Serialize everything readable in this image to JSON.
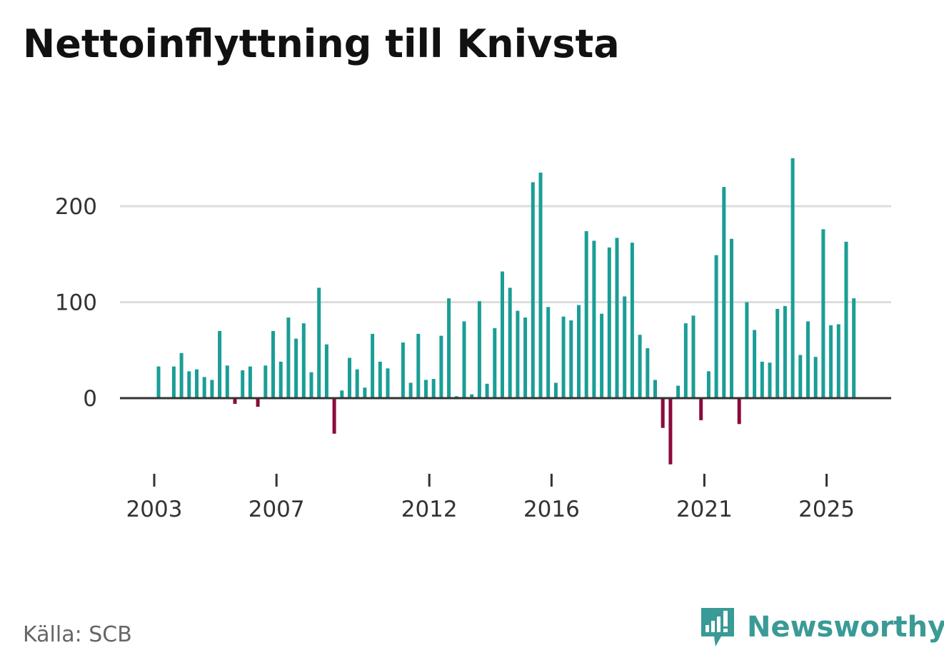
{
  "title": "Nettoinflyttning till Knivsta",
  "source": "Källa: SCB",
  "brand": "Newsworthy",
  "colors": {
    "positive": "#1a9e96",
    "negative": "#8c0a3c",
    "grid": "#dddddd",
    "axis": "#333333"
  },
  "chart_data": {
    "type": "bar",
    "title": "Nettoinflyttning till Knivsta",
    "xlabel": "",
    "ylabel": "",
    "ylim": [
      -70,
      250
    ],
    "yticks": [
      0,
      100,
      200
    ],
    "xticks": [
      "2003",
      "2007",
      "2012",
      "2016",
      "2021",
      "2025"
    ],
    "grid": true,
    "categories": [
      "2003-Q1",
      "2003-Q2",
      "2003-Q3",
      "2003-Q4",
      "2004-Q1",
      "2004-Q2",
      "2004-Q3",
      "2004-Q4",
      "2005-Q1",
      "2005-Q2",
      "2005-Q3",
      "2005-Q4",
      "2006-Q1",
      "2006-Q2",
      "2006-Q3",
      "2006-Q4",
      "2007-Q1",
      "2007-Q2",
      "2007-Q3",
      "2007-Q4",
      "2008-Q1",
      "2008-Q2",
      "2008-Q3",
      "2008-Q4",
      "2009-Q1",
      "2009-Q2",
      "2009-Q3",
      "2009-Q4",
      "2010-Q1",
      "2010-Q2",
      "2010-Q3",
      "2010-Q4",
      "2011-Q1",
      "2011-Q2",
      "2011-Q3",
      "2011-Q4",
      "2012-Q1",
      "2012-Q2",
      "2012-Q3",
      "2012-Q4",
      "2013-Q1",
      "2013-Q2",
      "2013-Q3",
      "2013-Q4",
      "2014-Q1",
      "2014-Q2",
      "2014-Q3",
      "2014-Q4",
      "2015-Q1",
      "2015-Q2",
      "2015-Q3",
      "2015-Q4",
      "2016-Q1",
      "2016-Q2",
      "2016-Q3",
      "2016-Q4",
      "2017-Q1",
      "2017-Q2",
      "2017-Q3",
      "2017-Q4",
      "2018-Q1",
      "2018-Q2",
      "2018-Q3",
      "2018-Q4",
      "2019-Q1",
      "2019-Q2",
      "2019-Q3",
      "2019-Q4",
      "2020-Q1",
      "2020-Q2",
      "2020-Q3",
      "2020-Q4",
      "2021-Q1",
      "2021-Q2",
      "2021-Q3",
      "2021-Q4",
      "2022-Q1",
      "2022-Q2",
      "2022-Q3",
      "2022-Q4",
      "2023-Q1",
      "2023-Q2",
      "2023-Q3",
      "2023-Q4",
      "2024-Q1",
      "2024-Q2",
      "2024-Q3",
      "2024-Q4",
      "2025-Q1",
      "2025-Q2",
      "2025-Q3",
      "2025-Q4"
    ],
    "series": [
      {
        "name": "Nettoinflyttning",
        "values": [
          33,
          0,
          33,
          47,
          28,
          30,
          22,
          19,
          70,
          34,
          -6,
          29,
          33,
          -9,
          34,
          70,
          38,
          84,
          62,
          78,
          27,
          115,
          56,
          -37,
          8,
          42,
          30,
          11,
          67,
          38,
          31,
          0,
          58,
          16,
          67,
          19,
          20,
          65,
          104,
          2,
          80,
          4,
          101,
          15,
          73,
          132,
          115,
          91,
          84,
          225,
          235,
          95,
          16,
          85,
          81,
          97,
          174,
          164,
          88,
          157,
          167,
          106,
          162,
          66,
          52,
          19,
          -31,
          -69,
          13,
          78,
          86,
          -23,
          28,
          149,
          220,
          166,
          -27,
          100,
          71,
          38,
          37,
          93,
          96,
          250,
          45,
          80,
          43,
          176,
          76,
          77,
          163,
          104
        ]
      }
    ]
  }
}
